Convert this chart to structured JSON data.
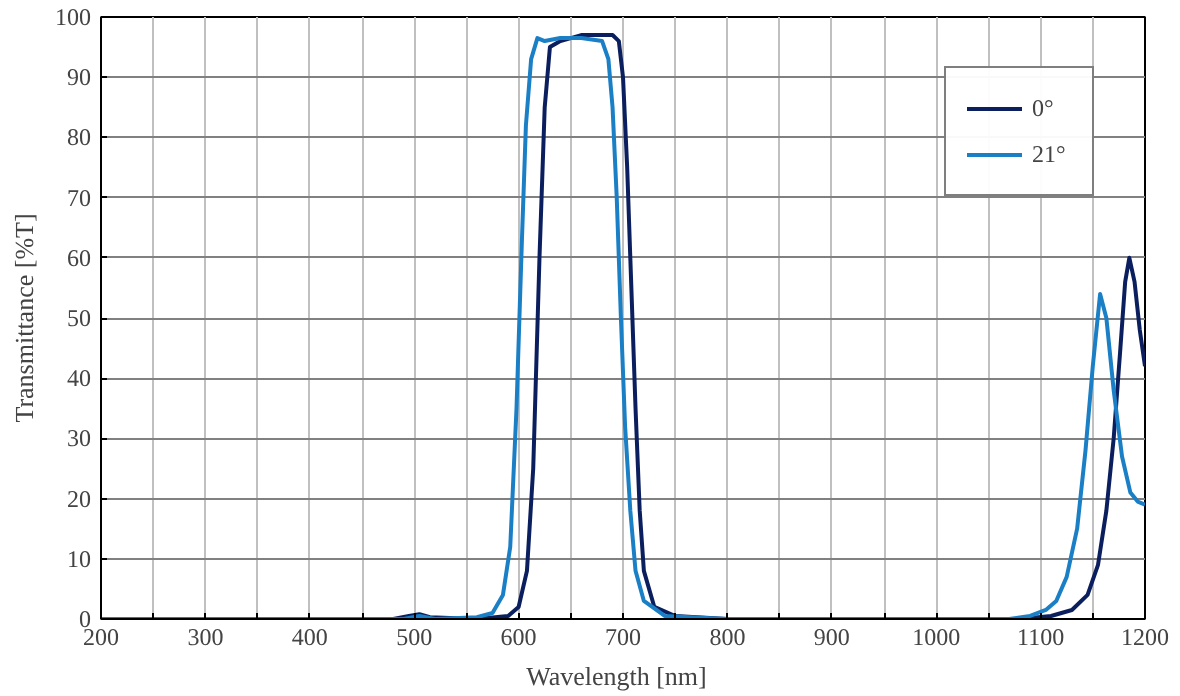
{
  "chart_data": {
    "type": "line",
    "xlabel": "Wavelength   [nm]",
    "ylabel": "Transmittance [%T]",
    "xlim": [
      200,
      1200
    ],
    "ylim": [
      0,
      100
    ],
    "xticks": [
      200,
      {
        "value": 250,
        "label": null
      },
      300,
      {
        "value": 350,
        "label": null
      },
      400,
      {
        "value": 450,
        "label": null
      },
      500,
      {
        "value": 550,
        "label": null
      },
      600,
      {
        "value": 650,
        "label": null
      },
      700,
      {
        "value": 750,
        "label": null
      },
      800,
      {
        "value": 850,
        "label": null
      },
      900,
      {
        "value": 950,
        "label": null
      },
      1000,
      {
        "value": 1050,
        "label": null
      },
      1100,
      {
        "value": 1150,
        "label": null
      },
      1200
    ],
    "yticks": [
      0,
      10,
      20,
      30,
      40,
      50,
      60,
      70,
      80,
      90,
      100
    ],
    "grid": true,
    "legend": "top right",
    "marker": "none",
    "line_style": "solid",
    "series": [
      {
        "name": "0°",
        "color": "#0b1f5e",
        "x": [
          480,
          495,
          505,
          515,
          560,
          590,
          600,
          608,
          614,
          620,
          625,
          630,
          640,
          650,
          660,
          670,
          680,
          690,
          696,
          700,
          704,
          708,
          712,
          716,
          720,
          730,
          750,
          800,
          900,
          1000,
          1080,
          1110,
          1130,
          1145,
          1155,
          1163,
          1170,
          1176,
          1181,
          1185,
          1190,
          1195,
          1200
        ],
        "values": [
          0,
          0.5,
          0.8,
          0.3,
          0,
          0.5,
          2,
          8,
          25,
          60,
          85,
          95,
          96,
          96.5,
          97,
          97,
          97,
          97,
          96,
          90,
          75,
          55,
          35,
          18,
          8,
          2,
          0.5,
          0,
          0,
          0,
          0,
          0.5,
          1.5,
          4,
          9,
          18,
          30,
          44,
          56,
          60,
          56,
          48,
          42
        ]
      },
      {
        "name": "21°",
        "color": "#1b7fc6",
        "x": [
          200,
          300,
          400,
          490,
          505,
          520,
          560,
          575,
          585,
          592,
          598,
          603,
          607,
          612,
          618,
          625,
          640,
          660,
          680,
          686,
          690,
          694,
          698,
          702,
          707,
          712,
          720,
          740,
          800,
          900,
          1000,
          1070,
          1090,
          1105,
          1115,
          1125,
          1135,
          1143,
          1150,
          1157,
          1163,
          1170,
          1178,
          1186,
          1193,
          1200
        ],
        "values": [
          0,
          0,
          0,
          0,
          0.5,
          0,
          0.3,
          1,
          4,
          12,
          35,
          62,
          82,
          93,
          96.5,
          96,
          96.5,
          96.5,
          96,
          93,
          85,
          70,
          50,
          32,
          18,
          8,
          3,
          0.5,
          0,
          0,
          0,
          0,
          0.5,
          1.5,
          3,
          7,
          15,
          28,
          42,
          54,
          50,
          38,
          27,
          21,
          19.5,
          19
        ]
      }
    ]
  }
}
